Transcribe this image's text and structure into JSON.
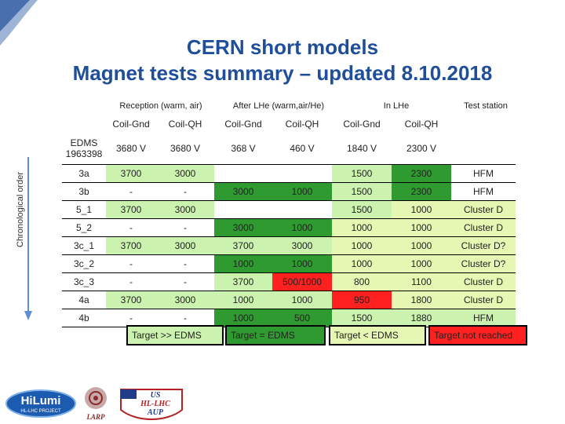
{
  "title_line1": "CERN short models",
  "title_line2": "Magnet tests summary – updated 8.10.2018",
  "axis_label": "Chronological order",
  "groups": {
    "reception": "Reception (warm, air)",
    "after_lhe": "After LHe (warm,air/He)",
    "in_lhe": "In LHe",
    "test_station": "Test station"
  },
  "subheaders": [
    "Coil-Gnd",
    "Coil-QH",
    "Coil-Gnd",
    "Coil-QH",
    "Coil-Gnd",
    "Coil-QH"
  ],
  "edms": {
    "label_line1": "EDMS",
    "label_line2": "1963398",
    "values": [
      "3680 V",
      "3680 V",
      "368 V",
      "460 V",
      "1840 V",
      "2300 V"
    ]
  },
  "rows": [
    {
      "name": "3a",
      "cells": [
        "3700",
        "3000",
        "",
        "",
        "1500",
        "2300",
        "HFM"
      ]
    },
    {
      "name": "3b",
      "cells": [
        "-",
        "-",
        "3000",
        "1000",
        "1500",
        "2300",
        "HFM"
      ]
    },
    {
      "name": "5_1",
      "cells": [
        "3700",
        "3000",
        "",
        "",
        "1500",
        "1000",
        "Cluster D"
      ]
    },
    {
      "name": "5_2",
      "cells": [
        "-",
        "-",
        "3000",
        "1000",
        "1000",
        "1000",
        "Cluster D"
      ]
    },
    {
      "name": "3c_1",
      "cells": [
        "3700",
        "3000",
        "3700",
        "3000",
        "1000",
        "1000",
        "Cluster D?"
      ]
    },
    {
      "name": "3c_2",
      "cells": [
        "-",
        "-",
        "1000",
        "1000",
        "1000",
        "1000",
        "Cluster D?"
      ]
    },
    {
      "name": "3c_3",
      "cells": [
        "-",
        "-",
        "3700",
        "500/1000",
        "800",
        "1100",
        "Cluster D"
      ]
    },
    {
      "name": "4a",
      "cells": [
        "3700",
        "3000",
        "1000",
        "1000",
        "950",
        "1800",
        "Cluster D"
      ]
    },
    {
      "name": "4b",
      "cells": [
        "-",
        "-",
        "1000",
        "500",
        "1500",
        "1880",
        "HFM"
      ]
    }
  ],
  "legend": {
    "light_green": "Target >> EDMS",
    "dark_green": "Target = EDMS",
    "yellow_green": "Target < EDMS",
    "red": "Target not reached"
  },
  "colors": {
    "title": "#1f4e9a",
    "light_green": "#ccf2b0",
    "dark_green": "#2f9a2f",
    "yellow_green": "#e6f7b3",
    "red": "#ff2020"
  },
  "logos": {
    "hilumi_main": "HiLumi",
    "hilumi_sub": "HL-LHC PROJECT",
    "larp": "LARP",
    "us_line1": "US",
    "us_line2": "HL-LHC",
    "us_line3": "AUP"
  }
}
